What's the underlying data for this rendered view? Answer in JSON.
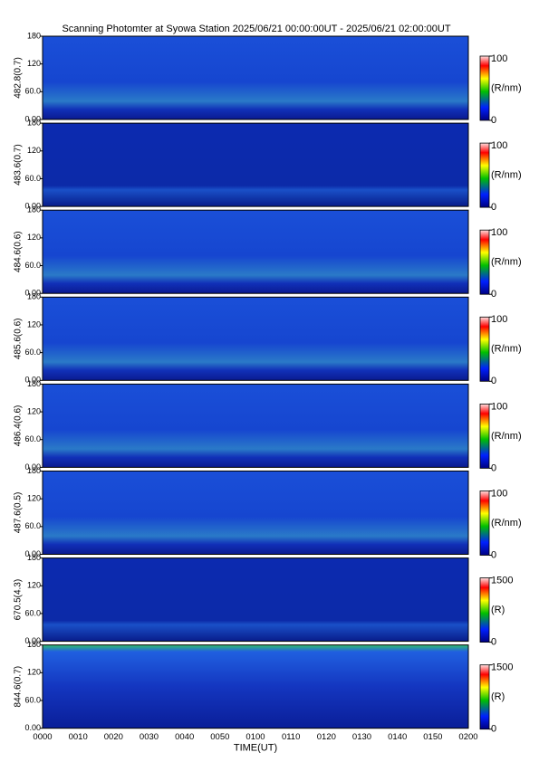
{
  "title": "Scanning Photomter at Syowa Station 2025/06/21 00:00:00UT - 2025/06/21 02:00:00UT",
  "time_axis": {
    "title": "TIME(UT)",
    "labels": [
      "0000",
      "0010",
      "0020",
      "0030",
      "0040",
      "0050",
      "0100",
      "0110",
      "0120",
      "0130",
      "0140",
      "0150",
      "0200"
    ]
  },
  "chart_data": [
    {
      "type": "heatmap",
      "ylabel": "482.8(0.7)",
      "ylim": [
        0,
        180
      ],
      "yticks": [
        {
          "value": 0,
          "label": "0.00"
        },
        {
          "value": 60,
          "label": "60.0"
        },
        120,
        180
      ],
      "colorbar": {
        "lim": [
          0,
          100
        ],
        "ticks": [
          0,
          100
        ],
        "label": "(R/nm)"
      }
    },
    {
      "type": "heatmap",
      "ylabel": "483.6(0.7)",
      "ylim": [
        0,
        180
      ],
      "yticks": [
        {
          "value": 0,
          "label": "0.00"
        },
        {
          "value": 60,
          "label": "60.0"
        },
        120,
        180
      ],
      "colorbar": {
        "lim": [
          0,
          100
        ],
        "ticks": [
          0,
          100
        ],
        "label": "(R/nm)"
      }
    },
    {
      "type": "heatmap",
      "ylabel": "484.6(0.6)",
      "ylim": [
        0,
        180
      ],
      "yticks": [
        {
          "value": 0,
          "label": "0.00"
        },
        {
          "value": 60,
          "label": "60.0"
        },
        120,
        180
      ],
      "colorbar": {
        "lim": [
          0,
          100
        ],
        "ticks": [
          0,
          100
        ],
        "label": "(R/nm)"
      }
    },
    {
      "type": "heatmap",
      "ylabel": "485.6(0.6)",
      "ylim": [
        0,
        180
      ],
      "yticks": [
        {
          "value": 0,
          "label": "0.00"
        },
        {
          "value": 60,
          "label": "60.0"
        },
        120,
        180
      ],
      "colorbar": {
        "lim": [
          0,
          100
        ],
        "ticks": [
          0,
          100
        ],
        "label": "(R/nm)"
      }
    },
    {
      "type": "heatmap",
      "ylabel": "486.4(0.6)",
      "ylim": [
        0,
        180
      ],
      "yticks": [
        {
          "value": 0,
          "label": "0.00"
        },
        {
          "value": 60,
          "label": "60.0"
        },
        120,
        180
      ],
      "colorbar": {
        "lim": [
          0,
          100
        ],
        "ticks": [
          0,
          100
        ],
        "label": "(R/nm)"
      }
    },
    {
      "type": "heatmap",
      "ylabel": "487.6(0.5)",
      "ylim": [
        0,
        180
      ],
      "yticks": [
        {
          "value": 0,
          "label": "0.00"
        },
        {
          "value": 60,
          "label": "60.0"
        },
        120,
        180
      ],
      "colorbar": {
        "lim": [
          0,
          100
        ],
        "ticks": [
          0,
          100
        ],
        "label": "(R/nm)"
      }
    },
    {
      "type": "heatmap",
      "ylabel": "670.5(4.3)",
      "ylim": [
        0,
        180
      ],
      "yticks": [
        {
          "value": 0,
          "label": "0.00"
        },
        {
          "value": 60,
          "label": "60.0"
        },
        120,
        180
      ],
      "colorbar": {
        "lim": [
          0,
          1500
        ],
        "ticks": [
          0,
          1500
        ],
        "label": "(R)"
      }
    },
    {
      "type": "heatmap",
      "ylabel": "844.6(0.7)",
      "ylim": [
        0,
        180
      ],
      "yticks": [
        {
          "value": 0,
          "label": "0.00"
        },
        {
          "value": 60,
          "label": "60.0"
        },
        120,
        180
      ],
      "colorbar": {
        "lim": [
          0,
          1500
        ],
        "ticks": [
          0,
          1500
        ],
        "label": "(R)"
      }
    }
  ]
}
